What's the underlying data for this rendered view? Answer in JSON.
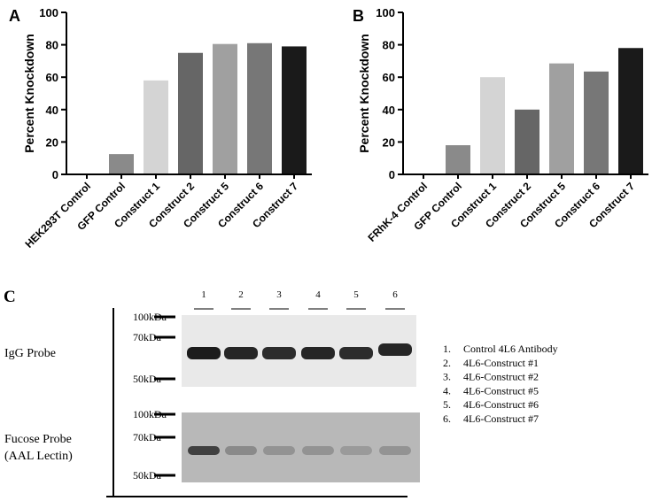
{
  "chart_data": [
    {
      "type": "bar",
      "panel_label": "A",
      "ylabel": "Percent Knockdown",
      "categories": [
        "HEK293T Control",
        "GFP Control",
        "Construct 1",
        "Construct 2",
        "Construct 5",
        "Construct 6",
        "Construct 7"
      ],
      "values": [
        0,
        12.5,
        58,
        75,
        80.5,
        81,
        79
      ],
      "colors": [
        "#999999",
        "#8a8a8a",
        "#d4d4d4",
        "#666666",
        "#a0a0a0",
        "#777777",
        "#1a1a1a"
      ],
      "ylim": [
        0,
        100
      ],
      "yticks": [
        0,
        20,
        40,
        60,
        80,
        100
      ]
    },
    {
      "type": "bar",
      "panel_label": "B",
      "ylabel": "Percent Knockdown",
      "categories": [
        "FRhK-4 Control",
        "GFP Control",
        "Construct 1",
        "Construct 2",
        "Construct 5",
        "Construct 6",
        "Construct 7"
      ],
      "values": [
        0,
        18,
        60,
        40,
        68.5,
        63.5,
        78
      ],
      "colors": [
        "#999999",
        "#8a8a8a",
        "#d4d4d4",
        "#666666",
        "#a0a0a0",
        "#777777",
        "#1a1a1a"
      ],
      "ylim": [
        0,
        100
      ],
      "yticks": [
        0,
        20,
        40,
        60,
        80,
        100
      ]
    }
  ],
  "panel_c": {
    "panel_label": "C",
    "lanes": [
      "1",
      "2",
      "3",
      "4",
      "5",
      "6"
    ],
    "markers_top": [
      "100kDa",
      "70kDa",
      "50kDa"
    ],
    "markers_bottom": [
      "100kDa",
      "70kDa",
      "50kDa"
    ],
    "probe_top": [
      "IgG Probe"
    ],
    "probe_bottom": [
      "Fucose Probe",
      "(AAL Lectin)"
    ],
    "legend": [
      {
        "number": "1.",
        "label": "Control 4L6 Antibody"
      },
      {
        "number": "2.",
        "label": "4L6-Construct #1"
      },
      {
        "number": "3.",
        "label": "4L6-Construct #2"
      },
      {
        "number": "4.",
        "label": "4L6-Construct #5"
      },
      {
        "number": "5.",
        "label": "4L6-Construct #6"
      },
      {
        "number": "6.",
        "label": "4L6-Construct #7"
      }
    ]
  }
}
